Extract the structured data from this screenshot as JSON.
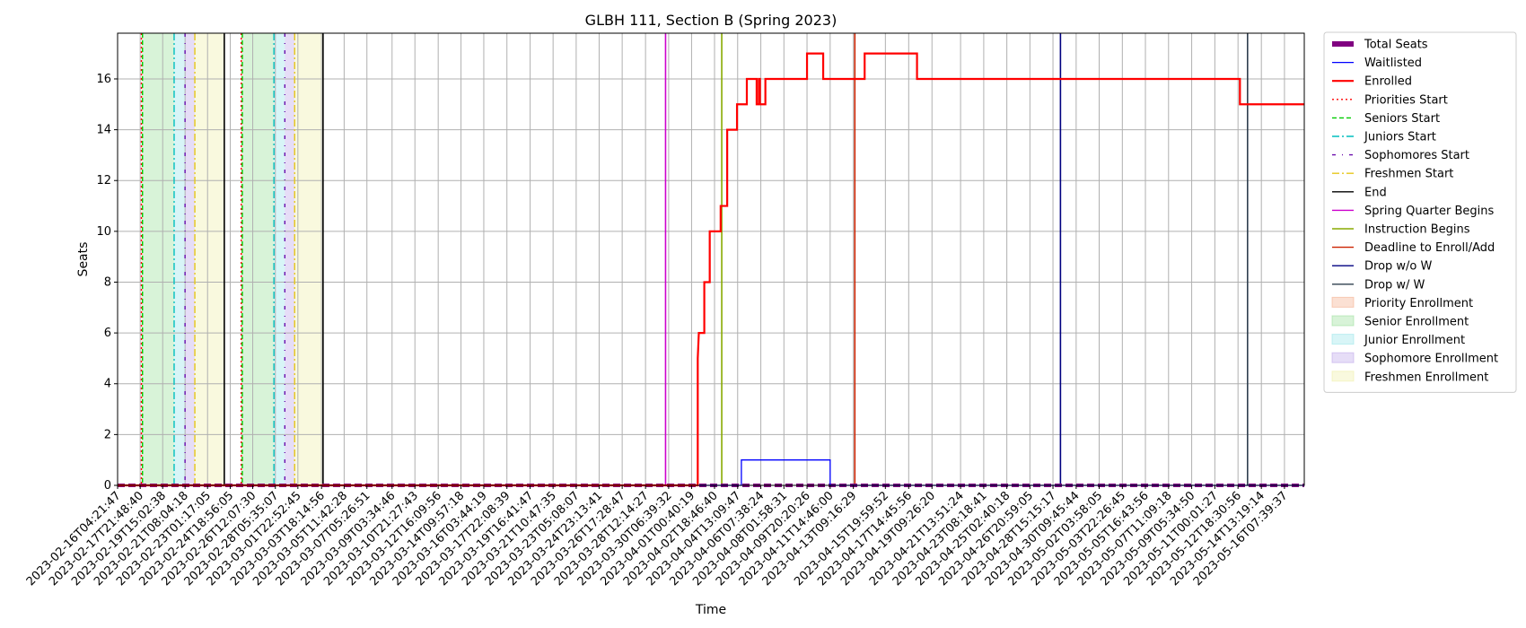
{
  "chart_data": {
    "type": "line",
    "title": "GLBH 111, Section B (Spring 2023)",
    "xlabel": "Time",
    "ylabel": "Seats",
    "ylim": [
      0,
      17.8
    ],
    "yticks": [
      0,
      2,
      4,
      6,
      8,
      10,
      12,
      14,
      16
    ],
    "grid": true,
    "legend_position": "outside right",
    "xlim": [
      "2023-02-16T04:21:47",
      "2023-05-17T20:00:00"
    ],
    "xtick_labels": [
      "2023-02-16T04:21:47",
      "2023-02-17T21:48:40",
      "2023-02-19T15:02:38",
      "2023-02-21T08:04:18",
      "2023-02-23T01:17:05",
      "2023-02-24T18:56:05",
      "2023-02-26T12:07:30",
      "2023-02-28T05:35:07",
      "2023-03-01T22:52:45",
      "2023-03-03T18:14:56",
      "2023-03-05T11:42:28",
      "2023-03-07T05:26:51",
      "2023-03-09T03:34:46",
      "2023-03-10T21:27:43",
      "2023-03-12T16:09:56",
      "2023-03-14T09:57:18",
      "2023-03-16T03:44:19",
      "2023-03-17T22:08:39",
      "2023-03-19T16:41:47",
      "2023-03-21T10:47:35",
      "2023-03-23T05:08:07",
      "2023-03-24T23:13:41",
      "2023-03-26T17:28:47",
      "2023-03-28T12:14:27",
      "2023-03-30T06:39:32",
      "2023-04-01T00:40:19",
      "2023-04-02T18:46:40",
      "2023-04-04T13:09:47",
      "2023-04-06T07:38:24",
      "2023-04-08T01:58:31",
      "2023-04-09T20:20:26",
      "2023-04-11T14:46:00",
      "2023-04-13T09:16:29",
      "2023-04-15T19:59:52",
      "2023-04-17T14:45:56",
      "2023-04-19T09:26:20",
      "2023-04-21T13:51:24",
      "2023-04-23T08:18:41",
      "2023-04-25T02:40:18",
      "2023-04-26T20:59:05",
      "2023-04-28T15:15:17",
      "2023-04-30T09:45:44",
      "2023-05-02T03:58:05",
      "2023-05-03T22:26:45",
      "2023-05-05T16:43:56",
      "2023-05-07T11:09:18",
      "2023-05-09T05:34:50",
      "2023-05-11T00:01:27",
      "2023-05-12T18:30:56",
      "2023-05-14T13:19:14",
      "2023-05-16T07:39:37"
    ],
    "series": [
      {
        "name": "Total Seats",
        "style": "thick dashed",
        "color": "#800080",
        "points": [
          [
            "2023-02-16T04:21:47",
            0
          ],
          [
            "2023-05-17T20:00:00",
            0
          ]
        ]
      },
      {
        "name": "Waitlisted",
        "style": "step",
        "color": "#0000ff",
        "points": [
          [
            "2023-02-16T04:21:47",
            0
          ],
          [
            "2023-04-04T20:00:00",
            0
          ],
          [
            "2023-04-04T20:00:00",
            1
          ],
          [
            "2023-04-11T14:46:00",
            1
          ],
          [
            "2023-04-11T14:46:00",
            0
          ],
          [
            "2023-05-17T20:00:00",
            0
          ]
        ]
      },
      {
        "name": "Enrolled",
        "style": "step",
        "color": "#ff0000",
        "points": [
          [
            "2023-02-16T04:21:47",
            0
          ],
          [
            "2023-04-01T12:00:00",
            0
          ],
          [
            "2023-04-01T12:00:00",
            5
          ],
          [
            "2023-04-01T14:00:00",
            6
          ],
          [
            "2023-04-02T00:00:00",
            6
          ],
          [
            "2023-04-02T00:00:00",
            8
          ],
          [
            "2023-04-02T10:00:00",
            8
          ],
          [
            "2023-04-02T10:00:00",
            10
          ],
          [
            "2023-04-03T06:00:00",
            10
          ],
          [
            "2023-04-03T06:00:00",
            11
          ],
          [
            "2023-04-03T18:00:00",
            11
          ],
          [
            "2023-04-03T18:00:00",
            14
          ],
          [
            "2023-04-04T12:00:00",
            14
          ],
          [
            "2023-04-04T12:00:00",
            15
          ],
          [
            "2023-04-05T06:00:00",
            15
          ],
          [
            "2023-04-05T06:00:00",
            16
          ],
          [
            "2023-04-06T00:00:00",
            16
          ],
          [
            "2023-04-06T00:00:00",
            15
          ],
          [
            "2023-04-06T04:00:00",
            15
          ],
          [
            "2023-04-06T04:00:00",
            16
          ],
          [
            "2023-04-06T06:00:00",
            16
          ],
          [
            "2023-04-06T06:00:00",
            15
          ],
          [
            "2023-04-06T16:00:00",
            15
          ],
          [
            "2023-04-06T16:00:00",
            16
          ],
          [
            "2023-04-09T20:20:26",
            16
          ],
          [
            "2023-04-09T20:20:26",
            17
          ],
          [
            "2023-04-11T02:00:00",
            17
          ],
          [
            "2023-04-11T02:00:00",
            16
          ],
          [
            "2023-04-14T06:00:00",
            16
          ],
          [
            "2023-04-14T06:00:00",
            17
          ],
          [
            "2023-04-18T06:00:00",
            17
          ],
          [
            "2023-04-18T06:00:00",
            16
          ],
          [
            "2023-05-12T22:00:00",
            16
          ],
          [
            "2023-05-12T22:00:00",
            15
          ],
          [
            "2023-05-17T20:00:00",
            15
          ]
        ]
      }
    ],
    "vlines": [
      {
        "name": "Priorities Start",
        "color": "#ff0000",
        "style": "dotted",
        "x": [
          "2023-02-18T00:00:00",
          "2023-02-25T15:00:00"
        ]
      },
      {
        "name": "Seniors Start",
        "color": "#00cc00",
        "style": "dashed",
        "x": [
          "2023-02-18T02:00:00",
          "2023-02-25T17:00:00"
        ]
      },
      {
        "name": "Juniors Start",
        "color": "#00bfbf",
        "style": "dashdot",
        "x": [
          "2023-02-20T12:00:00",
          "2023-02-28T03:00:00"
        ]
      },
      {
        "name": "Sophomores Start",
        "color": "#6a0dad",
        "style": "dashdot-sparse",
        "x": [
          "2023-02-21T08:00:00",
          "2023-02-28T23:00:00"
        ]
      },
      {
        "name": "Freshmen Start",
        "color": "#e6c619",
        "style": "dashdot",
        "x": [
          "2023-02-22T02:00:00",
          "2023-03-01T17:00:00"
        ]
      },
      {
        "name": "End",
        "color": "#000000",
        "style": "solid",
        "x": [
          "2023-02-24T08:00:00",
          "2023-03-03T21:00:00"
        ]
      },
      {
        "name": "Spring Quarter Begins",
        "color": "#cc00cc",
        "style": "solid",
        "x": [
          "2023-03-30T01:00:00"
        ]
      },
      {
        "name": "Instruction Begins",
        "color": "#88aa00",
        "style": "solid",
        "x": [
          "2023-04-03T08:00:00"
        ]
      },
      {
        "name": "Deadline to Enroll/Add",
        "color": "#cc2200",
        "style": "solid",
        "x": [
          "2023-04-13T12:00:00"
        ]
      },
      {
        "name": "Drop w/o W",
        "color": "#000080",
        "style": "solid",
        "x": [
          "2023-04-29T05:00:00"
        ]
      },
      {
        "name": "Drop w/ W",
        "color": "#2f3f4f",
        "style": "solid",
        "x": [
          "2023-05-13T12:00:00"
        ]
      }
    ],
    "spans": [
      {
        "name": "Priority Enrollment",
        "color": "#f4a582",
        "x": [
          [
            "2023-02-18T00:00:00",
            "2023-02-18T02:00:00"
          ],
          [
            "2023-02-25T15:00:00",
            "2023-02-25T17:00:00"
          ]
        ]
      },
      {
        "name": "Senior Enrollment",
        "color": "#8fdc8f",
        "x": [
          [
            "2023-02-18T02:00:00",
            "2023-02-20T12:00:00"
          ],
          [
            "2023-02-25T17:00:00",
            "2023-02-28T03:00:00"
          ]
        ]
      },
      {
        "name": "Junior Enrollment",
        "color": "#8ee3e8",
        "x": [
          [
            "2023-02-20T12:00:00",
            "2023-02-21T08:00:00"
          ],
          [
            "2023-02-28T03:00:00",
            "2023-02-28T23:00:00"
          ]
        ]
      },
      {
        "name": "Sophomore Enrollment",
        "color": "#b79ee8",
        "x": [
          [
            "2023-02-21T08:00:00",
            "2023-02-22T02:00:00"
          ],
          [
            "2023-02-28T23:00:00",
            "2023-03-01T17:00:00"
          ]
        ]
      },
      {
        "name": "Freshmen Enrollment",
        "color": "#eeeea0",
        "x": [
          [
            "2023-02-22T02:00:00",
            "2023-02-24T08:00:00"
          ],
          [
            "2023-03-01T17:00:00",
            "2023-03-03T21:00:00"
          ]
        ]
      }
    ]
  }
}
